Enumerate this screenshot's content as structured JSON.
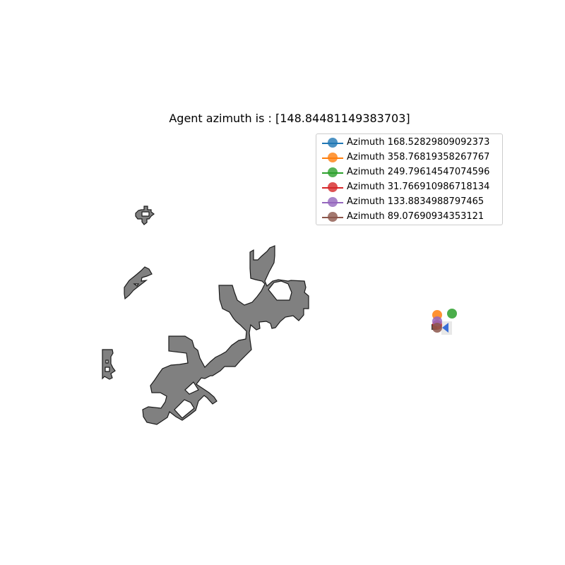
{
  "title": "Agent azimuth is : [148.84481149383703]",
  "colors": {
    "obstacle_fill": "#808080",
    "obstacle_edge": "#1a1a1a",
    "agent_marker": "#3a6fd8"
  },
  "legend": {
    "placement": "upper-right",
    "items": [
      {
        "label": "Azimuth 168.52829809092373",
        "color": "#1f77b4"
      },
      {
        "label": "Azimuth 358.76819358267767",
        "color": "#ff7f0e"
      },
      {
        "label": "Azimuth 249.79614547074596",
        "color": "#2ca02c"
      },
      {
        "label": "Azimuth 31.766910986718134",
        "color": "#d62728"
      },
      {
        "label": "Azimuth 133.8834988797465",
        "color": "#9467bd"
      },
      {
        "label": "Azimuth 89.07690934353121",
        "color": "#8c564b"
      }
    ]
  },
  "map": {
    "agent_icon": "triangle-left-icon",
    "agent_azimuth": 148.84481149383703
  }
}
